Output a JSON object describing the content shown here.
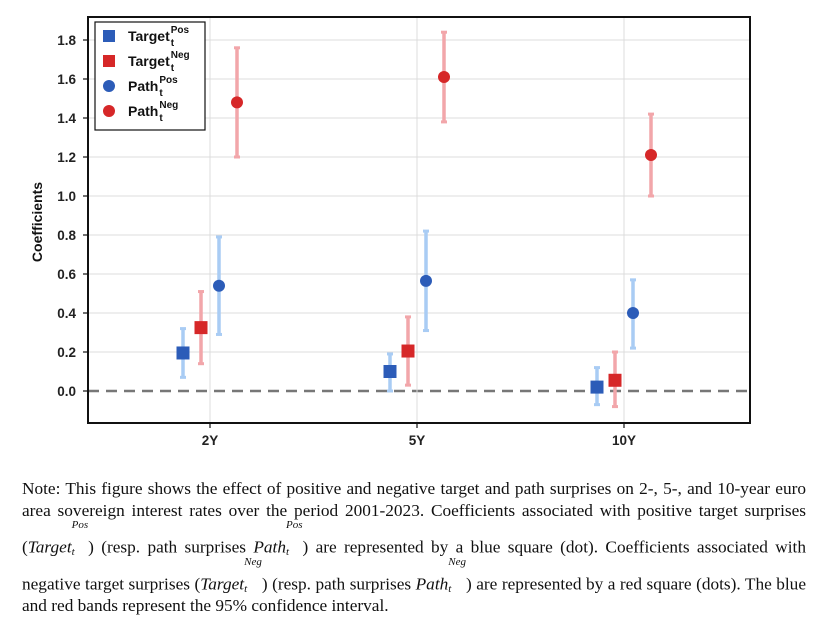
{
  "chart_data": {
    "type": "scatter",
    "ylabel": "Coefficients",
    "xlabel": "",
    "categories": [
      "2Y",
      "5Y",
      "10Y"
    ],
    "ylim": [
      -0.18,
      1.9
    ],
    "yticks": [
      "0.0",
      "0.2",
      "0.4",
      "0.6",
      "0.8",
      "1.0",
      "1.2",
      "1.4",
      "1.6",
      "1.8"
    ],
    "grid": true,
    "zero_line": "dashed",
    "legend_position": "top-left",
    "series": [
      {
        "name": "Target",
        "sup": "Pos",
        "sub": "t",
        "marker": "square",
        "color": "#2c5cb8",
        "band_color": "#a9ccf4",
        "values": [
          0.195,
          0.1,
          0.02
        ],
        "lower": [
          0.07,
          0.0,
          -0.07
        ],
        "upper": [
          0.32,
          0.19,
          0.12
        ]
      },
      {
        "name": "Target",
        "sup": "Neg",
        "sub": "t",
        "marker": "square",
        "color": "#d62728",
        "band_color": "#f2a6aa",
        "values": [
          0.325,
          0.205,
          0.055
        ],
        "lower": [
          0.14,
          0.03,
          -0.08
        ],
        "upper": [
          0.51,
          0.38,
          0.2
        ]
      },
      {
        "name": "Path",
        "sup": "Pos",
        "sub": "t",
        "marker": "circle",
        "color": "#2c5cb8",
        "band_color": "#a9ccf4",
        "values": [
          0.54,
          0.565,
          0.4
        ],
        "lower": [
          0.29,
          0.31,
          0.22
        ],
        "upper": [
          0.79,
          0.82,
          0.57
        ]
      },
      {
        "name": "Path",
        "sup": "Neg",
        "sub": "t",
        "marker": "circle",
        "color": "#d62728",
        "band_color": "#f2a6aa",
        "values": [
          1.48,
          1.61,
          1.21
        ],
        "lower": [
          1.2,
          1.38,
          1.0
        ],
        "upper": [
          1.76,
          1.84,
          1.42
        ]
      }
    ]
  },
  "note": {
    "line1": "Note: This figure shows the effect of positive and negative target and path surprises on",
    "line2": "2-, 5-, and 10-year euro area sovereign interest rates over the period 2001-2023.",
    "line3_a": "Coefficients associated with positive target surprises (",
    "target_word": "Target",
    "path_word": "Path",
    "sub_t": "t",
    "sup_pos": "Pos",
    "sup_neg": "Neg",
    "line3_b": ") (resp. path",
    "line4_a": "surprises ",
    "line4_b": ") are represented by a blue square (dot). Coefficients associated with",
    "line5_a": "negative target surprises (",
    "line5_b": ") (resp. path surprises ",
    "line5_c": ") are represented",
    "line6": "by a red square (dots). The blue and red bands represent the 95% confidence interval."
  }
}
